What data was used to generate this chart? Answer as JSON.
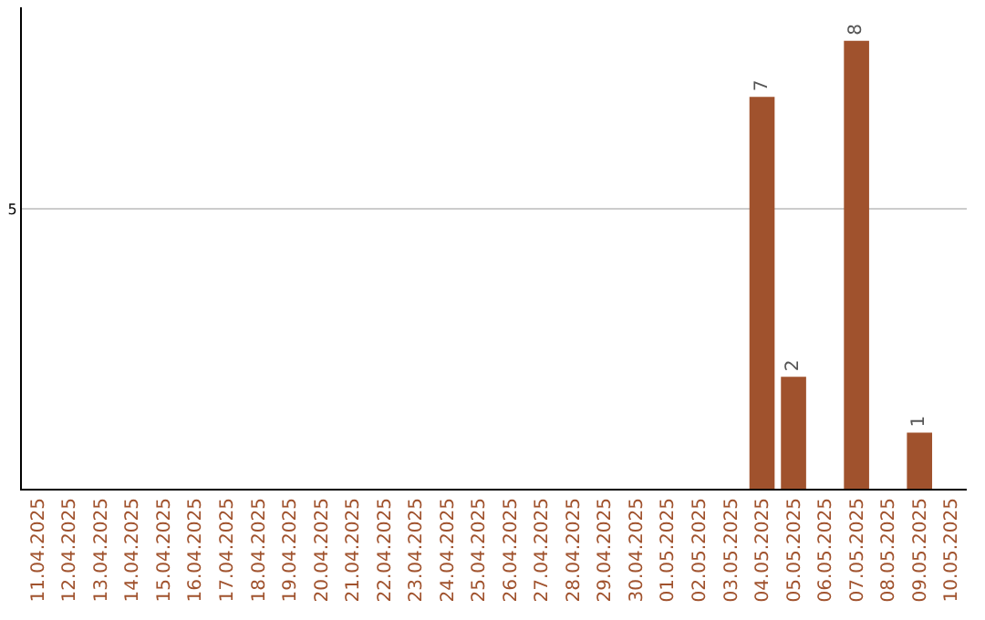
{
  "chart_data": {
    "type": "bar",
    "ylim": [
      0,
      8.6
    ],
    "yticks": [
      5
    ],
    "grid": "y",
    "categories": [
      "11.04.2025",
      "12.04.2025",
      "13.04.2025",
      "14.04.2025",
      "15.04.2025",
      "16.04.2025",
      "17.04.2025",
      "18.04.2025",
      "19.04.2025",
      "20.04.2025",
      "21.04.2025",
      "22.04.2025",
      "23.04.2025",
      "24.04.2025",
      "25.04.2025",
      "26.04.2025",
      "27.04.2025",
      "28.04.2025",
      "29.04.2025",
      "30.04.2025",
      "01.05.2025",
      "02.05.2025",
      "03.05.2025",
      "04.05.2025",
      "05.05.2025",
      "06.05.2025",
      "07.05.2025",
      "08.05.2025",
      "09.05.2025",
      "10.05.2025"
    ],
    "values": [
      null,
      null,
      null,
      null,
      null,
      null,
      null,
      null,
      null,
      null,
      null,
      null,
      null,
      null,
      null,
      null,
      null,
      null,
      null,
      null,
      null,
      null,
      null,
      7,
      2,
      null,
      8,
      null,
      1,
      null
    ],
    "data_labels": true,
    "color": "#a0522d"
  }
}
